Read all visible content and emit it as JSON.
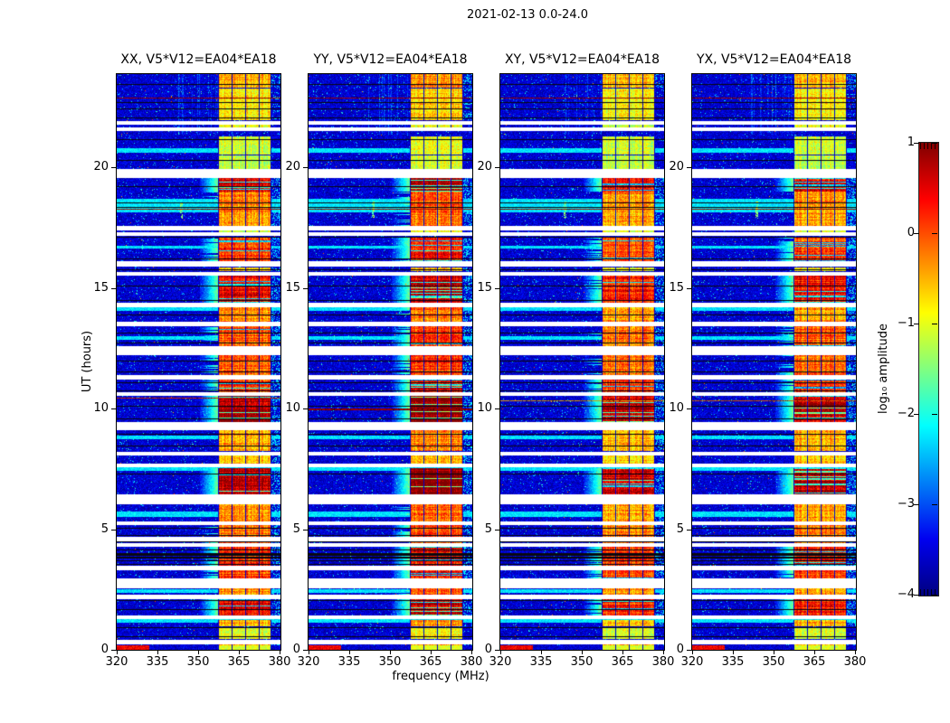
{
  "chart_data": {
    "type": "heatmap",
    "title": "2021-02-13 0.0-24.0",
    "xlabel": "frequency (MHz)",
    "ylabel": "UT (hours)",
    "x_range": [
      320,
      380.3
    ],
    "y_range": [
      0,
      23.9
    ],
    "x_ticks": [
      320,
      335,
      350,
      365,
      380
    ],
    "y_ticks": [
      0,
      5,
      10,
      15,
      20
    ],
    "grid": false,
    "panels": [
      {
        "label": "XX, V5*V12=EA04*EA18",
        "intensity_scale": 1.0,
        "special_rows": [
          {
            "hour": 10.45,
            "color": "#cc2200",
            "thickness": 1
          }
        ]
      },
      {
        "label": "YY, V5*V12=EA04*EA18",
        "intensity_scale": 1.08,
        "special_rows": [
          {
            "hour": 10.0,
            "color": "#990000",
            "thickness": 2
          }
        ]
      },
      {
        "label": "XY, V5*V12=EA04*EA18",
        "intensity_scale": 0.92,
        "special_rows": [
          {
            "hour": 10.35,
            "color": "#dd9900",
            "thickness": 1
          }
        ]
      },
      {
        "label": "YX, V5*V12=EA04*EA18",
        "intensity_scale": 0.97,
        "special_rows": [
          {
            "hour": 10.35,
            "color": "#cc5500",
            "thickness": 1
          }
        ]
      }
    ],
    "colorbar": {
      "label": "log₁₀ amplitude",
      "range": [
        -4,
        1
      ],
      "tick_labels": [
        "1",
        "0",
        "−1",
        "−2",
        "−3",
        "−4"
      ],
      "tick_values": [
        1,
        0,
        -1,
        -2,
        -3,
        -4
      ],
      "colormap": "jet",
      "stops": [
        {
          "t": 0.0,
          "rgb": [
            0,
            0,
            128
          ]
        },
        {
          "t": 0.125,
          "rgb": [
            0,
            0,
            240
          ]
        },
        {
          "t": 0.375,
          "rgb": [
            0,
            255,
            255
          ]
        },
        {
          "t": 0.625,
          "rgb": [
            255,
            255,
            0
          ]
        },
        {
          "t": 0.875,
          "rgb": [
            255,
            0,
            0
          ]
        },
        {
          "t": 1.0,
          "rgb": [
            128,
            0,
            0
          ]
        }
      ]
    },
    "features": {
      "background_level": -3.55,
      "rfi_band_mhz": [
        357.3,
        377.0
      ],
      "rfi_subband_boundaries_mhz": [
        357.3,
        362.3,
        367.3,
        372.3,
        377.0
      ],
      "band_intervals_hours": [
        [
          0.05,
          0.25,
          0.5
        ],
        [
          0.45,
          0.95,
          0.3
        ],
        [
          1.0,
          1.25,
          0.5
        ],
        [
          1.45,
          2.12,
          0.8
        ],
        [
          2.3,
          2.58,
          0.55
        ],
        [
          2.95,
          3.33,
          0.7
        ],
        [
          3.52,
          4.28,
          0.75
        ],
        [
          4.45,
          5.18,
          0.6
        ],
        [
          5.35,
          6.03,
          0.55
        ],
        [
          6.47,
          7.55,
          0.95
        ],
        [
          7.75,
          8.08,
          0.45
        ],
        [
          8.25,
          9.12,
          0.5
        ],
        [
          9.47,
          10.53,
          0.97
        ],
        [
          10.7,
          11.23,
          0.75
        ],
        [
          11.4,
          12.23,
          0.65
        ],
        [
          12.62,
          13.42,
          0.65
        ],
        [
          13.6,
          14.23,
          0.55
        ],
        [
          14.4,
          15.52,
          0.8
        ],
        [
          15.7,
          15.88,
          0.4
        ],
        [
          16.14,
          17.15,
          0.7
        ],
        [
          17.32,
          17.4,
          0.3
        ],
        [
          17.56,
          18.45,
          0.55
        ],
        [
          18.45,
          19.0,
          0.6
        ],
        [
          19.0,
          19.58,
          0.85
        ],
        [
          19.95,
          20.5,
          0.25
        ],
        [
          20.55,
          21.3,
          0.28
        ],
        [
          21.66,
          21.78,
          0.3
        ],
        [
          21.95,
          23.28,
          0.38
        ],
        [
          23.3,
          23.87,
          0.5
        ]
      ],
      "white_gaps_hours": [
        [
          0.25,
          0.4
        ],
        [
          1.3,
          1.42
        ],
        [
          2.15,
          2.27
        ],
        [
          2.6,
          2.95
        ],
        [
          3.35,
          3.5
        ],
        [
          4.3,
          4.42
        ],
        [
          4.55,
          4.67
        ],
        [
          5.2,
          5.33
        ],
        [
          6.05,
          6.45
        ],
        [
          7.6,
          7.73
        ],
        [
          8.1,
          8.22
        ],
        [
          9.15,
          9.45
        ],
        [
          10.55,
          10.68
        ],
        [
          11.25,
          11.38
        ],
        [
          12.25,
          12.6
        ],
        [
          13.45,
          13.58
        ],
        [
          14.25,
          14.37
        ],
        [
          15.55,
          15.67
        ],
        [
          15.9,
          16.12
        ],
        [
          17.18,
          17.3
        ],
        [
          17.42,
          17.55
        ],
        [
          19.6,
          19.92
        ],
        [
          21.52,
          21.64
        ],
        [
          21.8,
          21.92
        ]
      ],
      "black_rows_hours": [
        [
          0.55,
          1
        ],
        [
          0.95,
          1
        ],
        [
          1.7,
          1
        ],
        [
          2.05,
          1
        ],
        [
          3.55,
          1
        ],
        [
          3.7,
          1
        ],
        [
          3.85,
          2
        ],
        [
          4.0,
          3
        ],
        [
          4.15,
          1
        ],
        [
          4.5,
          1
        ],
        [
          4.75,
          1
        ],
        [
          5.05,
          1
        ],
        [
          7.3,
          1
        ],
        [
          8.45,
          1
        ],
        [
          8.95,
          1
        ],
        [
          9.6,
          1
        ],
        [
          10.1,
          1
        ],
        [
          10.75,
          1
        ],
        [
          11.1,
          1
        ],
        [
          11.55,
          1
        ],
        [
          12.0,
          1
        ],
        [
          12.75,
          1
        ],
        [
          13.15,
          1
        ],
        [
          13.9,
          1
        ],
        [
          14.5,
          1
        ],
        [
          15.1,
          1
        ],
        [
          15.75,
          1
        ],
        [
          16.2,
          1
        ],
        [
          17.1,
          1
        ],
        [
          18.35,
          1
        ],
        [
          18.55,
          1
        ],
        [
          19.2,
          1
        ],
        [
          20.3,
          1
        ],
        [
          21.15,
          1
        ],
        [
          22.05,
          1
        ],
        [
          22.45,
          1
        ],
        [
          22.7,
          1
        ],
        [
          23.45,
          1
        ]
      ],
      "cyan_rows_hours": [
        [
          1.15,
          0.12
        ],
        [
          2.4,
          0.1
        ],
        [
          5.55,
          0.18
        ],
        [
          7.45,
          0.1
        ],
        [
          8.75,
          0.12
        ],
        [
          12.9,
          0.1
        ],
        [
          14.1,
          0.15
        ],
        [
          16.65,
          0.1
        ],
        [
          18.15,
          0.55
        ],
        [
          20.65,
          0.15
        ]
      ],
      "special_rows_all": [
        {
          "hour": 22.9,
          "color": "#a00000",
          "thickness": 1
        },
        {
          "hour": 18.28,
          "color": "#b01000",
          "thickness": 1
        }
      ]
    }
  }
}
